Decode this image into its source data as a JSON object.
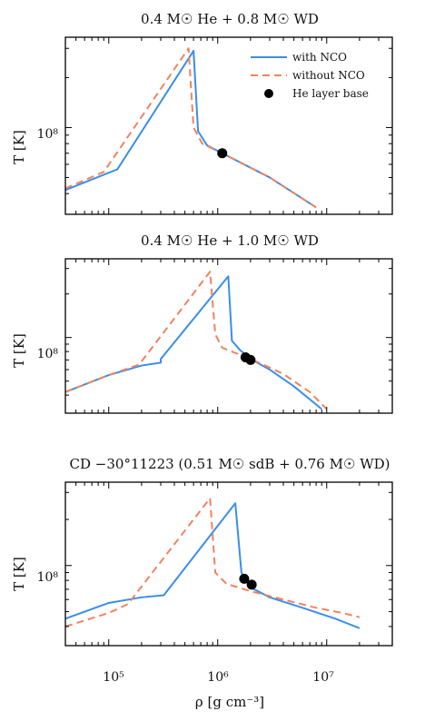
{
  "figure": {
    "xlabel": "ρ [g cm⁻³]",
    "ylabel": "T [K]",
    "x_tick_labels": [
      "10⁵",
      "10⁶",
      "10⁷"
    ],
    "y_tick_label": "10⁸",
    "xscale": "log",
    "yscale": "log"
  },
  "colors": {
    "with_nco": "#3a8ee8",
    "without_nco": "#f0835e",
    "marker": "#000000"
  },
  "chart_data": [
    {
      "type": "line",
      "title": "0.4 M☉ He + 0.8 M☉ WD",
      "xlim": [
        40000,
        40000000
      ],
      "ylim": [
        30000000,
        350000000
      ],
      "legend": {
        "placement": "top-right",
        "entries": [
          "with NCO",
          "without NCO",
          "He layer base"
        ]
      },
      "series": [
        {
          "name": "with NCO",
          "style": "solid",
          "points": [
            [
              40000,
              42000000
            ],
            [
              120000,
              56000000
            ],
            [
              600000,
              290000000
            ],
            [
              660000,
              95000000
            ],
            [
              800000,
              78000000
            ],
            [
              1100000,
              70000000
            ],
            [
              3000000,
              50000000
            ],
            [
              8000000,
              33000000
            ]
          ]
        },
        {
          "name": "without NCO",
          "style": "dashed",
          "points": [
            [
              40000,
              43000000
            ],
            [
              90000,
              54000000
            ],
            [
              540000,
              300000000
            ],
            [
              600000,
              100000000
            ],
            [
              720000,
              80000000
            ],
            [
              1100000,
              70000000
            ],
            [
              3000000,
              50000000
            ],
            [
              8000000,
              33000000
            ]
          ]
        }
      ],
      "markers": [
        [
          1100000,
          70000000
        ]
      ]
    },
    {
      "type": "line",
      "title": "0.4 M☉ He + 1.0 M☉ WD",
      "xlim": [
        40000,
        40000000
      ],
      "ylim": [
        30000000,
        350000000
      ],
      "series": [
        {
          "name": "with NCO",
          "style": "solid",
          "points": [
            [
              40000,
              42000000
            ],
            [
              100000,
              55000000
            ],
            [
              200000,
              64000000
            ],
            [
              300000,
              67000000
            ],
            [
              300000,
              71000000
            ],
            [
              1250000,
              265000000
            ],
            [
              1350000,
              95000000
            ],
            [
              1600000,
              82000000
            ],
            [
              2000000,
              71000000
            ],
            [
              3000000,
              60000000
            ],
            [
              5000000,
              46000000
            ],
            [
              9000000,
              32000000
            ]
          ]
        },
        {
          "name": "without NCO",
          "style": "dashed",
          "points": [
            [
              40000,
              42000000
            ],
            [
              100000,
              55000000
            ],
            [
              190000,
              65000000
            ],
            [
              850000,
              285000000
            ],
            [
              950000,
              105000000
            ],
            [
              1100000,
              85000000
            ],
            [
              1600000,
              76000000
            ],
            [
              2500000,
              66000000
            ],
            [
              4000000,
              56000000
            ],
            [
              7000000,
              42000000
            ],
            [
              10000000,
              32000000
            ]
          ]
        }
      ],
      "markers": [
        [
          1800000,
          73000000
        ],
        [
          2000000,
          70000000
        ]
      ]
    },
    {
      "type": "line",
      "title": "CD −30°11223 (0.51 M☉ sdB + 0.76 M☉ WD)",
      "xlim": [
        40000,
        40000000
      ],
      "ylim": [
        30000000,
        350000000
      ],
      "series": [
        {
          "name": "with NCO",
          "style": "solid",
          "points": [
            [
              40000,
              45000000
            ],
            [
              100000,
              57000000
            ],
            [
              200000,
              62000000
            ],
            [
              320000,
              64000000
            ],
            [
              1450000,
              255000000
            ],
            [
              1650000,
              90000000
            ],
            [
              2000000,
              72000000
            ],
            [
              3000000,
              62000000
            ],
            [
              6000000,
              53000000
            ],
            [
              12000000,
              45000000
            ],
            [
              20000000,
              39000000
            ]
          ]
        },
        {
          "name": "without NCO",
          "style": "dashed",
          "points": [
            [
              40000,
              40000000
            ],
            [
              100000,
              49000000
            ],
            [
              150000,
              56000000
            ],
            [
              850000,
              275000000
            ],
            [
              950000,
              90000000
            ],
            [
              1200000,
              76000000
            ],
            [
              2000000,
              68000000
            ],
            [
              4000000,
              60000000
            ],
            [
              8000000,
              53000000
            ],
            [
              14000000,
              49000000
            ],
            [
              20000000,
              46000000
            ]
          ]
        }
      ],
      "markers": [
        [
          1750000,
          82000000
        ],
        [
          2050000,
          75000000
        ]
      ]
    }
  ]
}
